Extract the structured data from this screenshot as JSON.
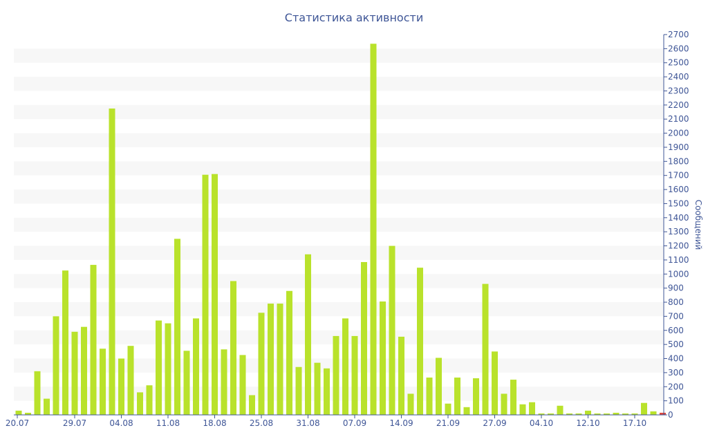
{
  "chart_data": {
    "type": "bar",
    "title": "Статистика активности",
    "xlabel": "",
    "ylabel": "Сообщений",
    "ylim": [
      0,
      2700
    ],
    "y_ticks": [
      0,
      100,
      200,
      300,
      400,
      500,
      600,
      700,
      800,
      900,
      1000,
      1100,
      1200,
      1300,
      1400,
      1500,
      1600,
      1700,
      1800,
      1900,
      2000,
      2100,
      2200,
      2300,
      2400,
      2500,
      2600,
      2700
    ],
    "x_tick_labels": [
      "20.07",
      "29.07",
      "04.08",
      "11.08",
      "18.08",
      "25.08",
      "31.08",
      "07.09",
      "14.09",
      "21.09",
      "27.09",
      "04.10",
      "12.10",
      "17.10"
    ],
    "x_tick_indices": [
      0,
      6,
      11,
      16,
      21,
      26,
      31,
      36,
      41,
      46,
      51,
      56,
      61,
      66
    ],
    "grid": "horizontal alternating bands",
    "y_axis_position": "right",
    "bar_color": "#b9e22b",
    "highlight_color": "#e0463c",
    "text_color": "#3e5596",
    "values": [
      30,
      15,
      310,
      115,
      700,
      1025,
      590,
      625,
      1065,
      470,
      2175,
      400,
      490,
      160,
      210,
      670,
      650,
      1250,
      455,
      685,
      1705,
      1710,
      465,
      950,
      425,
      140,
      725,
      790,
      790,
      880,
      340,
      1140,
      370,
      330,
      560,
      685,
      560,
      1085,
      2635,
      805,
      1200,
      555,
      150,
      1045,
      265,
      405,
      80,
      265,
      55,
      260,
      930,
      450,
      150,
      250,
      75,
      90,
      10,
      10,
      65,
      10,
      10,
      30,
      10,
      10,
      15,
      10,
      10,
      85,
      25,
      15
    ],
    "highlight_index": 69
  }
}
